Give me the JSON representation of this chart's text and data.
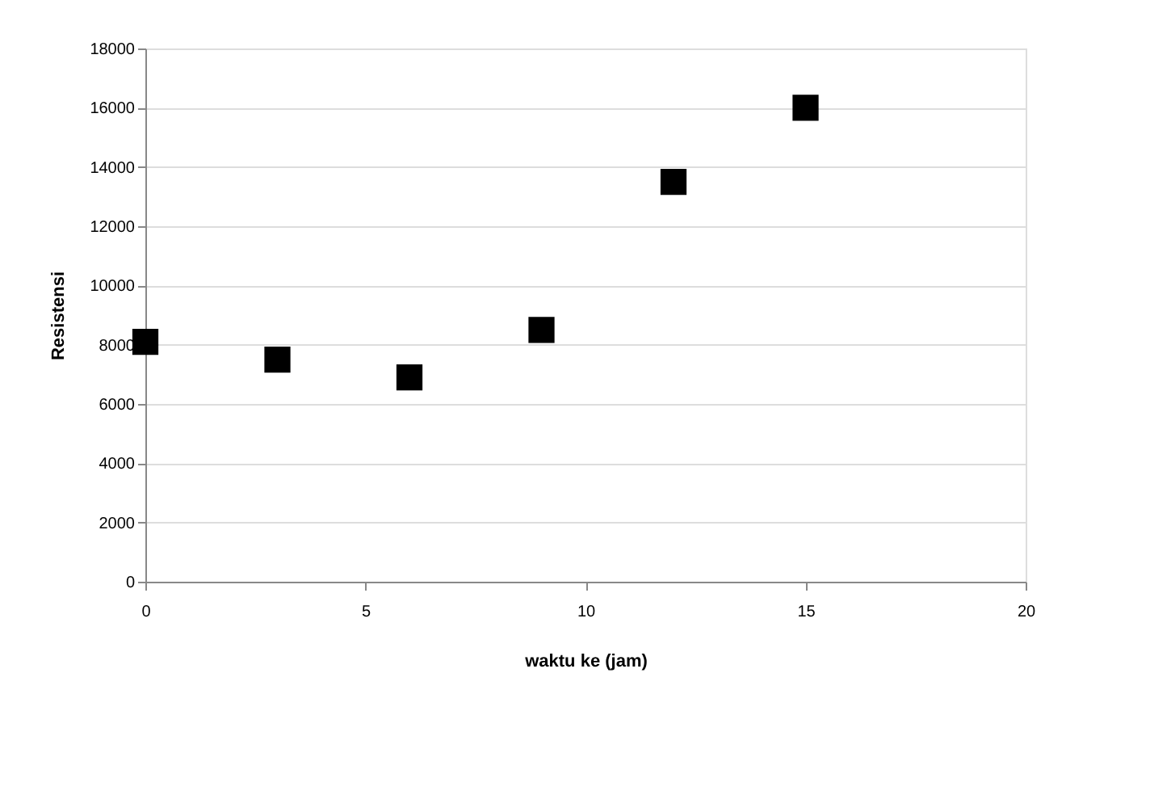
{
  "chart_data": {
    "type": "scatter",
    "xlabel": "waktu ke (jam)",
    "ylabel": "Resistensi",
    "x": [
      0,
      3,
      6,
      9,
      12,
      15
    ],
    "series": [
      {
        "color": "#000000",
        "values": [
          8100,
          7500,
          6900,
          8500,
          13500,
          16000
        ]
      }
    ],
    "xlim": [
      0,
      20
    ],
    "xticks": [
      0,
      5,
      10,
      15,
      20
    ],
    "ylim": [
      0,
      18000
    ],
    "yticks": [
      0,
      2000,
      4000,
      6000,
      8000,
      10000,
      12000,
      14000,
      16000,
      18000
    ],
    "grid": "y",
    "marker": "square"
  }
}
